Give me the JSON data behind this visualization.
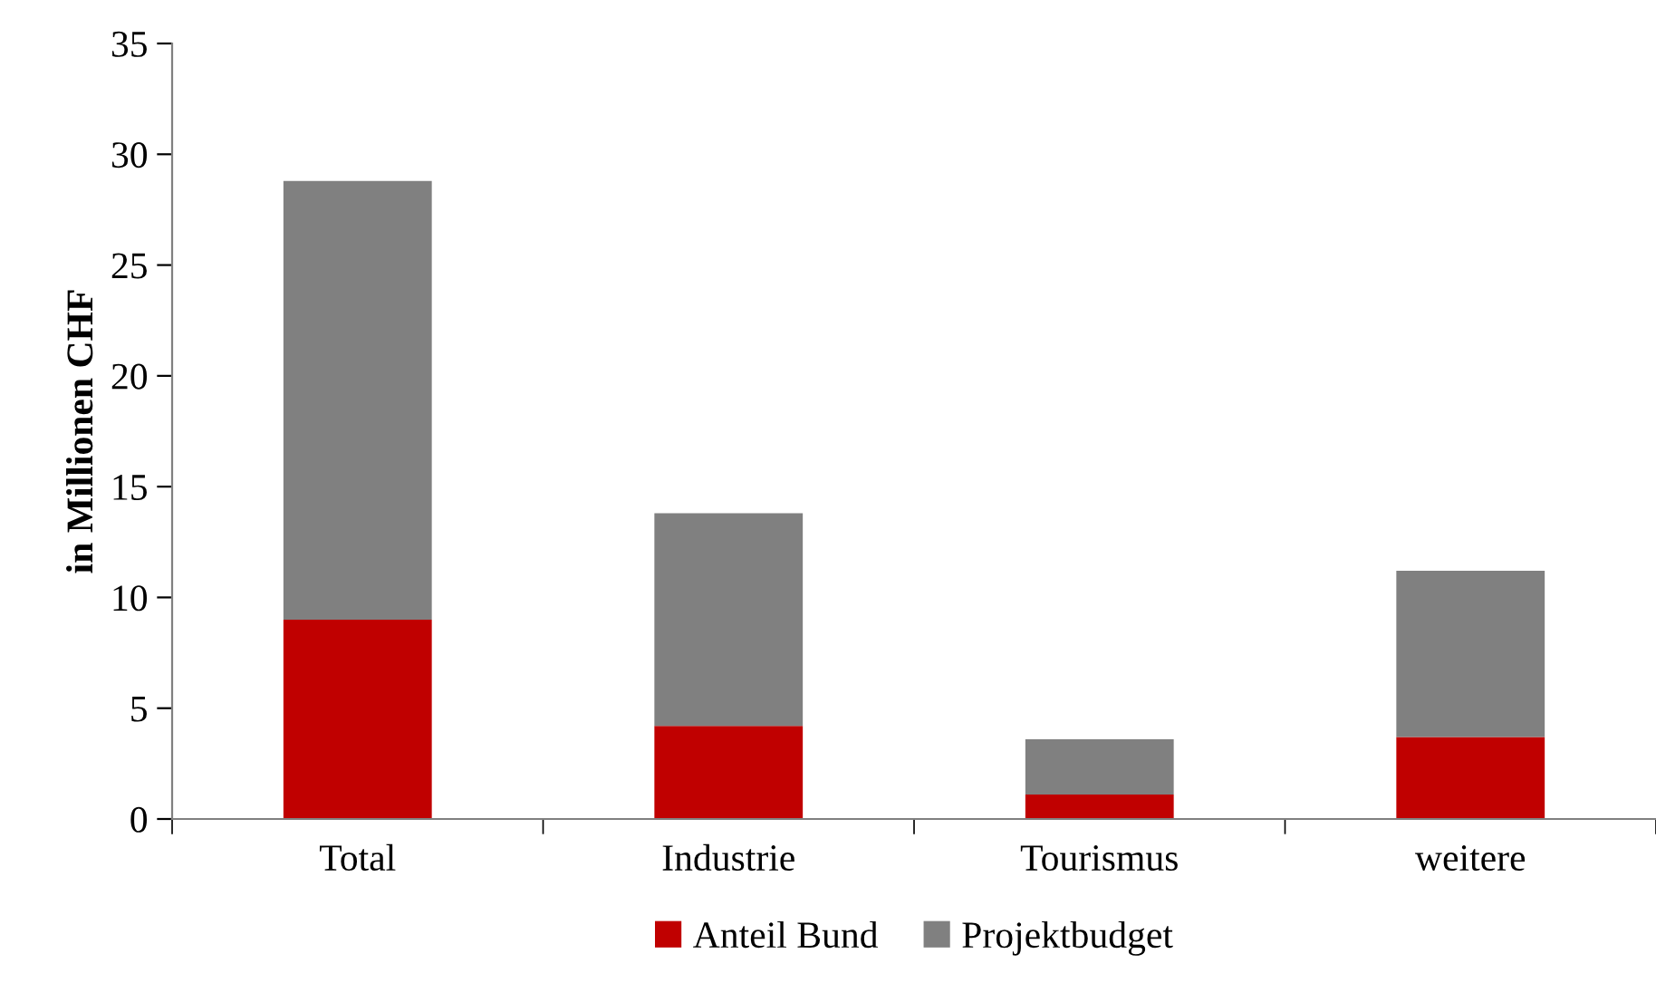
{
  "chart_data": {
    "type": "bar",
    "stacked": true,
    "ylabel": "in Millionen CHF",
    "categories": [
      "Total",
      "Industrie",
      "Tourismus",
      "weitere"
    ],
    "series": [
      {
        "name": "Anteil Bund",
        "color": "#c00000",
        "values": [
          9.0,
          4.2,
          1.1,
          3.7
        ]
      },
      {
        "name": "Projektbudget",
        "color": "#808080",
        "values": [
          19.8,
          9.6,
          2.5,
          7.5
        ]
      }
    ],
    "ylim": [
      0,
      35
    ],
    "yticks": [
      0,
      5,
      10,
      15,
      20,
      25,
      30,
      35
    ],
    "grid": false,
    "legend": "bottom"
  }
}
